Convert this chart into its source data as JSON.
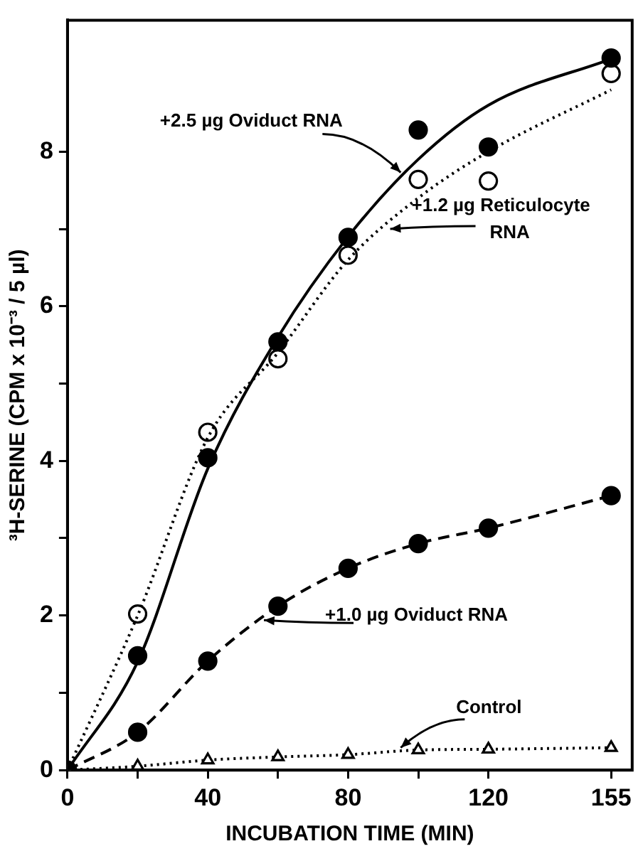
{
  "chart_data": {
    "type": "line",
    "xlabel": "INCUBATION TIME (MIN)",
    "ylabel": "³H-SERINE (CPM x 10⁻³ / 5 µl)",
    "xlim": [
      0,
      161
    ],
    "ylim": [
      0,
      9.7
    ],
    "xticks": [
      0,
      {
        "value": 20,
        "label": null
      },
      40,
      {
        "value": 60,
        "label": null
      },
      80,
      {
        "value": 100,
        "label": null
      },
      120,
      155
    ],
    "yticks": [
      0,
      {
        "value": 1,
        "label": null
      },
      2,
      {
        "value": 3,
        "label": null
      },
      4,
      {
        "value": 5,
        "label": null
      },
      6,
      {
        "value": 7,
        "label": null
      },
      8
    ],
    "grid": false,
    "legend": false,
    "series": [
      {
        "type": "line",
        "color": "#000000",
        "marker": "none",
        "line_style": "solid",
        "x": [
          0,
          20,
          40,
          60,
          80,
          100,
          120,
          155
        ],
        "values": [
          0,
          1.4,
          3.9,
          5.6,
          6.9,
          7.9,
          8.6,
          9.2
        ]
      },
      {
        "type": "scatter",
        "color": "#000000",
        "marker": "circle",
        "line_style": "solid",
        "x": [
          20,
          40,
          60,
          80,
          100,
          120,
          155
        ],
        "values": [
          1.48,
          4.04,
          5.54,
          6.89,
          8.28,
          8.06,
          9.21
        ]
      },
      {
        "type": "line",
        "color": "#000000",
        "marker": "none",
        "line_style": "dotted",
        "x": [
          0,
          20,
          40,
          60,
          80,
          100,
          120,
          155
        ],
        "values": [
          0,
          2.0,
          4.3,
          5.4,
          6.6,
          7.4,
          8.0,
          8.8
        ]
      },
      {
        "type": "scatter",
        "color": "#000000",
        "marker": "circle",
        "line_style": "dotted",
        "x": [
          20,
          40,
          60,
          80,
          100,
          120,
          155
        ],
        "values": [
          2.02,
          4.37,
          5.32,
          6.66,
          7.64,
          7.62,
          9.01
        ]
      },
      {
        "type": "line",
        "color": "#000000",
        "marker": "circle",
        "line_style": "dashed",
        "x": [
          0,
          20,
          40,
          60,
          80,
          100,
          120,
          155
        ],
        "values": [
          0,
          0.49,
          1.41,
          2.12,
          2.61,
          2.93,
          3.13,
          3.55
        ]
      },
      {
        "type": "line",
        "color": "#000000",
        "marker": "triangle",
        "line_style": "dotted",
        "x": [
          0,
          20,
          40,
          60,
          80,
          100,
          120,
          155
        ],
        "values": [
          0,
          0.05,
          0.13,
          0.17,
          0.2,
          0.26,
          0.27,
          0.29
        ]
      }
    ],
    "annotations": [
      {
        "text": "+2.5 µg Oviduct RNA",
        "x": 95,
        "y": 7.73
      },
      {
        "text": "+1.2 µg Reticulocyte\nRNA",
        "x": 92,
        "y": 7.0
      },
      {
        "text": "+1.0 µg Oviduct RNA",
        "x": 56,
        "y": 1.94
      },
      {
        "text": "Control",
        "x": 95,
        "y": 0.29
      }
    ]
  }
}
